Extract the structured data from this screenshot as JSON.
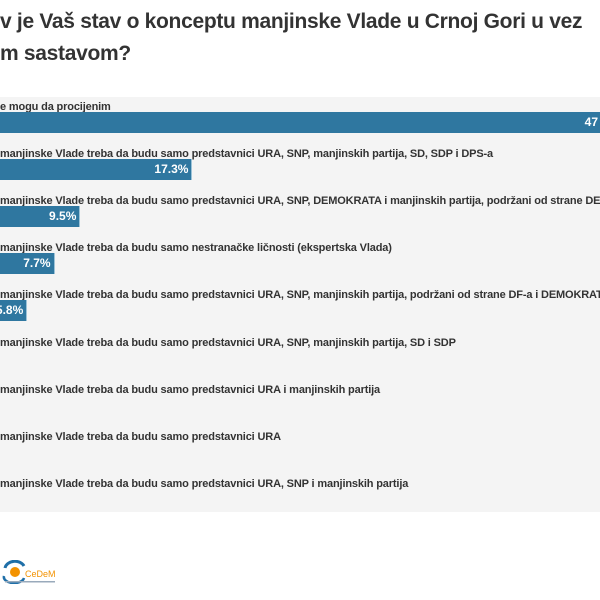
{
  "chart_data": {
    "type": "bar",
    "orientation": "horizontal",
    "title": [
      "v je Vaš stav o konceptu manjinske Vlade u Crnoj Gori u vez",
      "m sastavom?"
    ],
    "categories": [
      "e mogu da procijenim",
      "manjinske Vlade treba da budu samo predstavnici URA, SNP, manjinskih partija, SD, SDP i DPS-a",
      "manjinske Vlade treba da budu samo predstavnici URA, SNP, DEMOKRATA i manjinskih partija, podržani od strane DEM",
      "manjinske Vlade treba da budu samo nestranačke ličnosti (ekspertska Vlada)",
      "manjinske Vlade treba da budu samo predstavnici URA, SNP, manjinskih partija, podržani od strane DF-a i DEMOKRATA",
      "manjinske Vlade treba da budu samo predstavnici URA, SNP, manjinskih partija, SD i SDP",
      "manjinske Vlade treba da budu samo predstavnici URA i manjinskih partija",
      "manjinske Vlade treba da budu samo predstavnici URA",
      "manjinske Vlade treba da budu samo predstavnici URA, SNP i manjinskih partija"
    ],
    "values": [
      47,
      17.3,
      9.5,
      7.7,
      5.8,
      null,
      null,
      null,
      null
    ],
    "value_labels": [
      "47",
      "17.3%",
      "9.5%",
      "7.7%",
      "5.8%",
      "",
      "",
      "",
      ""
    ],
    "unit": "%",
    "bar_color": "#2f77a0",
    "background_color": "#f4f4f4",
    "grid": false
  },
  "logo": {
    "text": "CeDeM",
    "colors": [
      "#1f6fa8",
      "#f39200"
    ]
  }
}
